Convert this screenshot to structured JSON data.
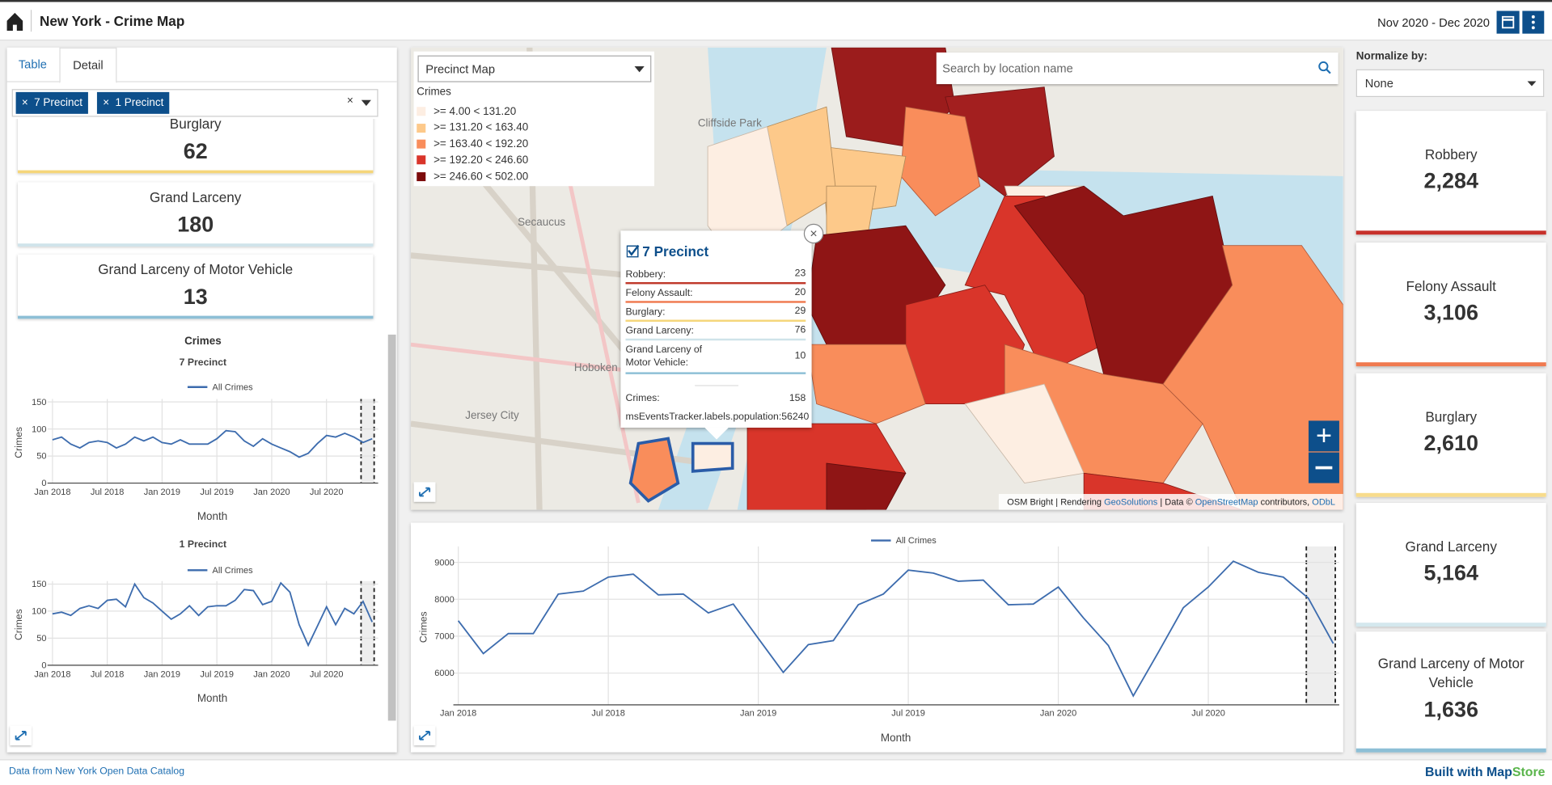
{
  "header": {
    "title": "New York - Crime Map",
    "date_range": "Nov 2020 - Dec 2020"
  },
  "left_panel": {
    "tabs": [
      "Table",
      "Detail"
    ],
    "chips": [
      "7 Precinct",
      "1 Precinct"
    ],
    "cards": [
      {
        "label": "Burglary",
        "value": 62,
        "color": "#f5d67a"
      },
      {
        "label": "Grand Larceny",
        "value": 180,
        "color": "#cfe3ea"
      },
      {
        "label": "Grand Larceny of Motor Vehicle",
        "value": 13,
        "color": "#8dbfd6"
      }
    ]
  },
  "chart_data": [
    {
      "type": "line",
      "title": "Crimes",
      "subtitle": "7 Precinct",
      "y_label": "Crimes",
      "x_label": "Month",
      "x": [
        "2018-01",
        "2018-02",
        "2018-03",
        "2018-04",
        "2018-05",
        "2018-06",
        "2018-07",
        "2018-08",
        "2018-09",
        "2018-10",
        "2018-11",
        "2018-12",
        "2019-01",
        "2019-02",
        "2019-03",
        "2019-04",
        "2019-05",
        "2019-06",
        "2019-07",
        "2019-08",
        "2019-09",
        "2019-10",
        "2019-11",
        "2019-12",
        "2020-01",
        "2020-02",
        "2020-03",
        "2020-04",
        "2020-05",
        "2020-06",
        "2020-07",
        "2020-08",
        "2020-09",
        "2020-10",
        "2020-11",
        "2020-12"
      ],
      "series": [
        {
          "name": "All Crimes",
          "color": "#3d6cae",
          "values": [
            80,
            85,
            72,
            65,
            75,
            78,
            75,
            65,
            72,
            85,
            78,
            85,
            75,
            72,
            80,
            72,
            72,
            72,
            82,
            97,
            95,
            78,
            68,
            82,
            72,
            65,
            58,
            48,
            55,
            73,
            88,
            85,
            92,
            85,
            75,
            82
          ]
        }
      ],
      "ylim": [
        0,
        150
      ],
      "yticks": [
        0,
        50,
        100,
        150
      ],
      "xticks": [
        {
          "value": "2018-01",
          "label": "Jan 2018"
        },
        {
          "value": "2018-07",
          "label": "Jul 2018"
        },
        {
          "value": "2019-01",
          "label": "Jan 2019"
        },
        {
          "value": "2019-07",
          "label": "Jul 2019"
        },
        {
          "value": "2020-01",
          "label": "Jan 2020"
        },
        {
          "value": "2020-07",
          "label": "Jul 2020"
        }
      ],
      "highlight": [
        "2020-11",
        "2020-12"
      ],
      "grid": true
    },
    {
      "type": "line",
      "subtitle": "1 Precinct",
      "y_label": "Crimes",
      "x_label": "Month",
      "x": [
        "2018-01",
        "2018-02",
        "2018-03",
        "2018-04",
        "2018-05",
        "2018-06",
        "2018-07",
        "2018-08",
        "2018-09",
        "2018-10",
        "2018-11",
        "2018-12",
        "2019-01",
        "2019-02",
        "2019-03",
        "2019-04",
        "2019-05",
        "2019-06",
        "2019-07",
        "2019-08",
        "2019-09",
        "2019-10",
        "2019-11",
        "2019-12",
        "2020-01",
        "2020-02",
        "2020-03",
        "2020-04",
        "2020-05",
        "2020-06",
        "2020-07",
        "2020-08",
        "2020-09",
        "2020-10",
        "2020-11",
        "2020-12"
      ],
      "series": [
        {
          "name": "All Crimes",
          "color": "#3d6cae",
          "values": [
            95,
            98,
            92,
            105,
            110,
            105,
            120,
            122,
            108,
            150,
            125,
            115,
            100,
            85,
            95,
            110,
            92,
            108,
            110,
            110,
            120,
            140,
            138,
            112,
            118,
            152,
            135,
            75,
            37,
            72,
            108,
            75,
            105,
            95,
            118,
            80
          ]
        }
      ],
      "ylim": [
        0,
        150
      ],
      "yticks": [
        0,
        50,
        100,
        150
      ],
      "xticks": [
        {
          "value": "2018-01",
          "label": "Jan 2018"
        },
        {
          "value": "2018-07",
          "label": "Jul 2018"
        },
        {
          "value": "2019-01",
          "label": "Jan 2019"
        },
        {
          "value": "2019-07",
          "label": "Jul 2019"
        },
        {
          "value": "2020-01",
          "label": "Jan 2020"
        },
        {
          "value": "2020-07",
          "label": "Jul 2020"
        }
      ],
      "highlight": [
        "2020-11",
        "2020-12"
      ],
      "grid": true
    },
    {
      "type": "line",
      "y_label": "Crimes",
      "x_label": "Month",
      "x": [
        "2018-01",
        "2018-02",
        "2018-03",
        "2018-04",
        "2018-05",
        "2018-06",
        "2018-07",
        "2018-08",
        "2018-09",
        "2018-10",
        "2018-11",
        "2018-12",
        "2019-01",
        "2019-02",
        "2019-03",
        "2019-04",
        "2019-05",
        "2019-06",
        "2019-07",
        "2019-08",
        "2019-09",
        "2019-10",
        "2019-11",
        "2019-12",
        "2020-01",
        "2020-02",
        "2020-03",
        "2020-04",
        "2020-05",
        "2020-06",
        "2020-07",
        "2020-08",
        "2020-09",
        "2020-10",
        "2020-11",
        "2020-12"
      ],
      "series": [
        {
          "name": "All Crimes",
          "color": "#3d6cae",
          "values": [
            7420,
            6530,
            7070,
            7070,
            8140,
            8220,
            8600,
            8680,
            8120,
            8140,
            7630,
            7870,
            6940,
            6020,
            6770,
            6880,
            7850,
            8140,
            8790,
            8710,
            8490,
            8520,
            7850,
            7870,
            8330,
            7500,
            6750,
            5380,
            6560,
            7770,
            8330,
            9030,
            8730,
            8600,
            8030,
            6800
          ]
        }
      ],
      "ylim": [
        5140,
        9350
      ],
      "yticks": [
        6000,
        7000,
        8000,
        9000
      ],
      "xticks": [
        {
          "value": "2018-01",
          "label": "Jan 2018"
        },
        {
          "value": "2018-07",
          "label": "Jul 2018"
        },
        {
          "value": "2019-01",
          "label": "Jan 2019"
        },
        {
          "value": "2019-07",
          "label": "Jul 2019"
        },
        {
          "value": "2020-01",
          "label": "Jan 2020"
        },
        {
          "value": "2020-07",
          "label": "Jul 2020"
        }
      ],
      "highlight": [
        "2020-11",
        "2020-12"
      ],
      "grid": true
    }
  ],
  "map": {
    "selector": "Precinct Map",
    "search_placeholder": "Search by location name",
    "legend_title": "Crimes",
    "legend": [
      {
        "label": ">= 4.00 < 131.20",
        "color": "#fdeee2"
      },
      {
        "label": ">= 131.20 < 163.40",
        "color": "#fdc98a"
      },
      {
        "label": ">= 163.40 < 192.20",
        "color": "#f98d5b"
      },
      {
        "label": ">= 192.20 < 246.60",
        "color": "#d9352a"
      },
      {
        "label": ">= 246.60 < 502.00",
        "color": "#7c0b0b"
      }
    ],
    "popup": {
      "title": "7 Precinct",
      "rows": [
        {
          "label": "Robbery:",
          "value": 23,
          "color": "#c0392b"
        },
        {
          "label": "Felony Assault:",
          "value": 20,
          "color": "#f07a50"
        },
        {
          "label": "Burglary:",
          "value": 29,
          "color": "#f5d67a"
        },
        {
          "label": "Grand Larceny:",
          "value": 76,
          "color": "#cfe3ea"
        },
        {
          "label": "Grand Larceny of Motor Vehicle:",
          "value": 10,
          "color": "#8dbfd6"
        }
      ],
      "crimes_label": "Crimes:",
      "crimes": 158,
      "population": "msEventsTracker.labels.population:56240"
    },
    "attribution": [
      "OSM Bright | Rendering ",
      "GeoSolutions",
      " | Data © ",
      "OpenStreetMap",
      " contributors, ",
      "ODbL"
    ]
  },
  "right_panel": {
    "normalize_label": "Normalize by:",
    "normalize_value": "None",
    "cards": [
      {
        "label": "Robbery",
        "value": "2,284",
        "color": "#c7312b"
      },
      {
        "label": "Felony Assault",
        "value": "3,106",
        "color": "#f07a50"
      },
      {
        "label": "Burglary",
        "value": "2,610",
        "color": "#f8dc8c"
      },
      {
        "label": "Grand Larceny",
        "value": "5,164",
        "color": "#d4e8ee"
      },
      {
        "label": "Grand Larceny of Motor Vehicle",
        "value": "1,636",
        "color": "#8dbfd6"
      }
    ]
  },
  "footer": {
    "source": "Data from New York Open Data Catalog",
    "built_with": "Built with",
    "brand_a": "Map",
    "brand_b": "Store"
  }
}
